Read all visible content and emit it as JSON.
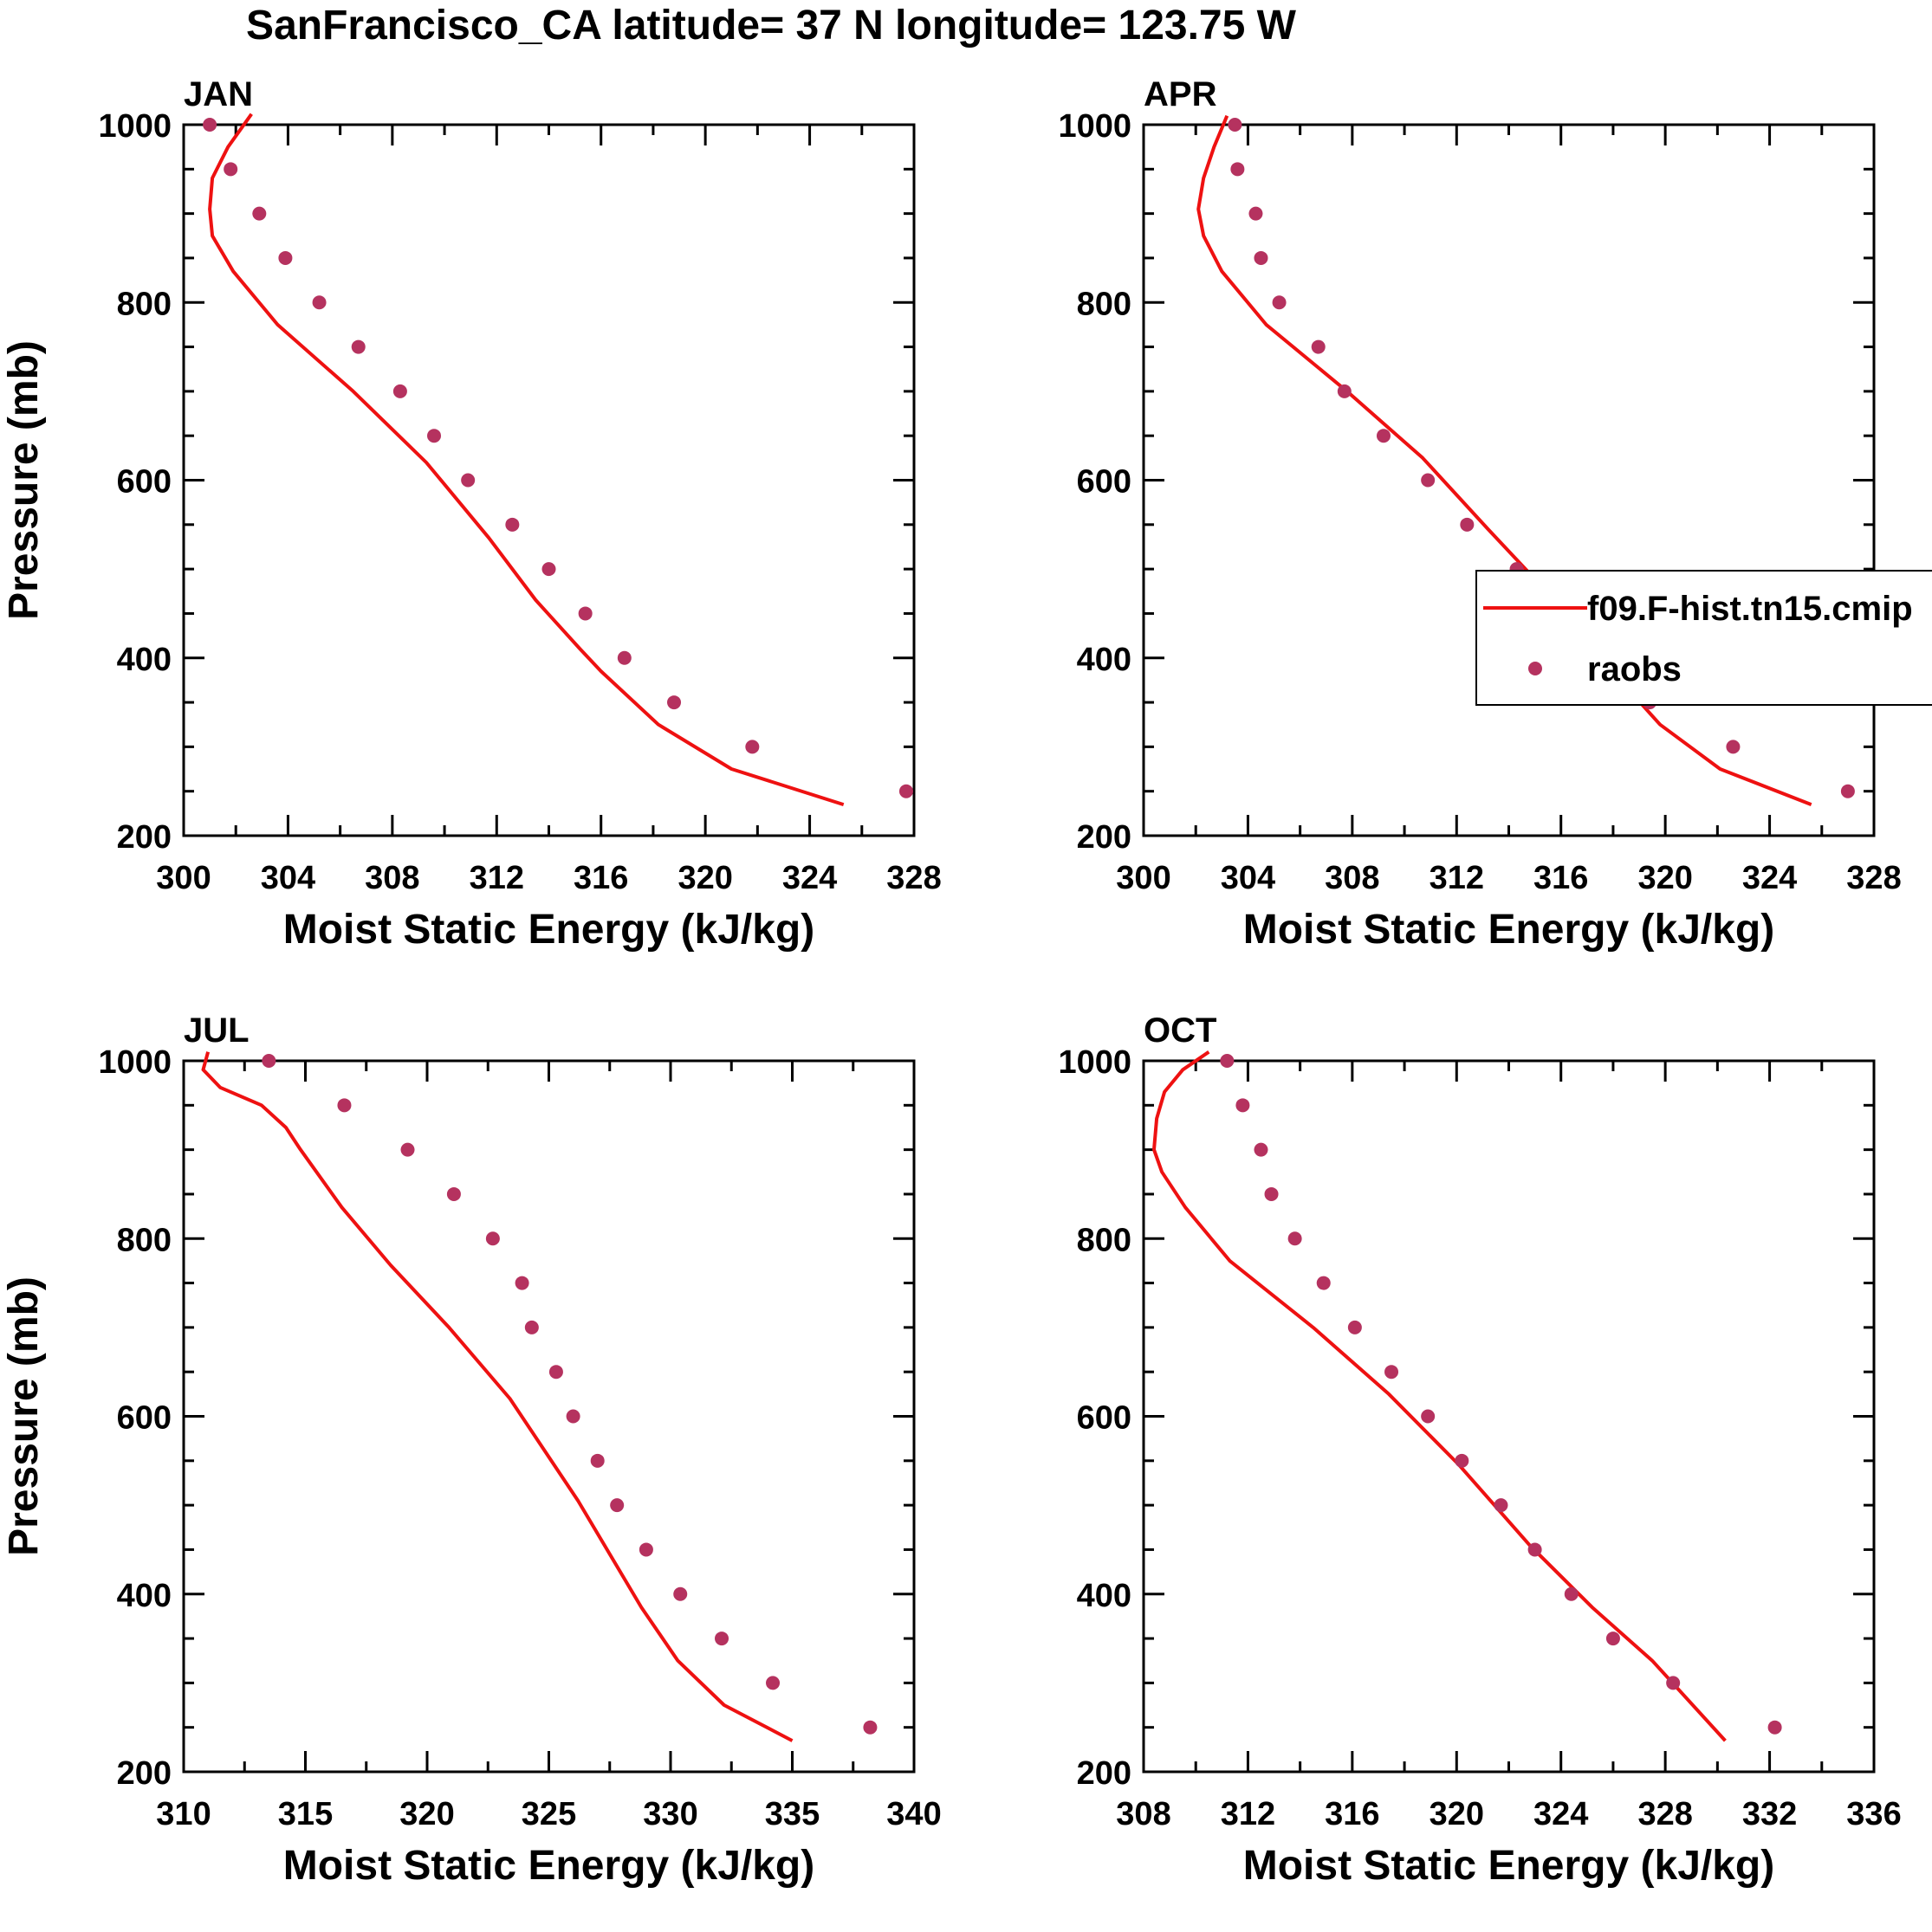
{
  "figure": {
    "title": "SanFrancisco_CA  latitude= 37 N longitude= 123.75 W"
  },
  "legend": {
    "model_label": "f09.F-hist.tn15.cmip",
    "obs_label": "raobs"
  },
  "colors": {
    "model_line": "#ee1111",
    "obs_marker": "#b5325f",
    "axis": "#000000",
    "background": "#ffffff"
  },
  "chart_data": [
    {
      "type": "line",
      "panel_title": "JAN",
      "xlabel": "Moist Static Energy (kJ/kg)",
      "ylabel": "Pressure (mb)",
      "xlim": [
        300,
        328
      ],
      "ylim": [
        1000,
        200
      ],
      "xticks": [
        "300",
        "304",
        "308",
        "312",
        "316",
        "320",
        "324",
        "328"
      ],
      "yticks": [
        "200",
        "400",
        "600",
        "800",
        "1000"
      ],
      "series": [
        {
          "name": "f09.F-hist.tn15.cmip",
          "style": "line",
          "x": [
            302.6,
            301.7,
            301.1,
            301.0,
            301.1,
            301.9,
            303.6,
            306.5,
            309.3,
            311.7,
            313.5,
            315.2,
            316.0,
            318.2,
            321.0,
            325.3
          ],
          "y": [
            1012,
            975,
            940,
            905,
            875,
            835,
            775,
            700,
            620,
            535,
            465,
            410,
            385,
            325,
            275,
            235
          ]
        },
        {
          "name": "raobs",
          "style": "markers",
          "x": [
            301.0,
            301.8,
            302.9,
            303.9,
            305.2,
            306.7,
            308.3,
            309.6,
            310.9,
            312.6,
            314.0,
            315.4,
            316.9,
            318.8,
            321.8,
            327.7
          ],
          "y": [
            1000,
            950,
            900,
            850,
            800,
            750,
            700,
            650,
            600,
            550,
            500,
            450,
            400,
            350,
            300,
            250
          ]
        }
      ]
    },
    {
      "type": "line",
      "panel_title": "APR",
      "xlabel": "Moist Static Energy (kJ/kg)",
      "ylabel": "",
      "xlim": [
        300,
        328
      ],
      "ylim": [
        1000,
        200
      ],
      "xticks": [
        "300",
        "304",
        "308",
        "312",
        "316",
        "320",
        "324",
        "328"
      ],
      "yticks": [
        "200",
        "400",
        "600",
        "800",
        "1000"
      ],
      "series": [
        {
          "name": "f09.F-hist.tn15.cmip",
          "style": "line",
          "x": [
            303.2,
            302.7,
            302.3,
            302.1,
            302.3,
            303.0,
            304.7,
            307.8,
            310.7,
            313.2,
            315.6,
            317.2,
            319.8,
            322.1,
            325.6
          ],
          "y": [
            1010,
            975,
            940,
            905,
            875,
            835,
            775,
            700,
            625,
            545,
            470,
            410,
            325,
            275,
            235
          ]
        },
        {
          "name": "raobs",
          "style": "markers",
          "x": [
            303.5,
            303.6,
            304.3,
            304.5,
            305.2,
            306.7,
            307.7,
            309.2,
            310.9,
            312.4,
            314.3,
            315.6,
            317.2,
            319.4,
            322.6,
            327.0
          ],
          "y": [
            1000,
            950,
            900,
            850,
            800,
            750,
            700,
            650,
            600,
            550,
            500,
            450,
            400,
            350,
            300,
            250
          ]
        }
      ]
    },
    {
      "type": "line",
      "panel_title": "JUL",
      "xlabel": "Moist Static Energy (kJ/kg)",
      "ylabel": "Pressure (mb)",
      "xlim": [
        310,
        340
      ],
      "ylim": [
        1000,
        200
      ],
      "xticks": [
        "310",
        "315",
        "320",
        "325",
        "330",
        "335",
        "340"
      ],
      "yticks": [
        "200",
        "400",
        "600",
        "800",
        "1000"
      ],
      "series": [
        {
          "name": "f09.F-hist.tn15.cmip",
          "style": "line",
          "x": [
            311.0,
            310.8,
            311.5,
            313.2,
            314.2,
            314.8,
            316.5,
            318.5,
            320.9,
            323.4,
            326.2,
            328.8,
            330.3,
            332.2,
            335.0
          ],
          "y": [
            1010,
            990,
            970,
            950,
            925,
            900,
            835,
            770,
            700,
            620,
            505,
            385,
            325,
            275,
            235
          ]
        },
        {
          "name": "raobs",
          "style": "markers",
          "x": [
            313.5,
            316.6,
            319.2,
            321.1,
            322.7,
            323.9,
            324.3,
            325.3,
            326.0,
            327.0,
            327.8,
            329.0,
            330.4,
            332.1,
            334.2,
            338.2
          ],
          "y": [
            1000,
            950,
            900,
            850,
            800,
            750,
            700,
            650,
            600,
            550,
            500,
            450,
            400,
            350,
            300,
            250
          ]
        }
      ]
    },
    {
      "type": "line",
      "panel_title": "OCT",
      "xlabel": "Moist Static Energy (kJ/kg)",
      "ylabel": "",
      "xlim": [
        308,
        336
      ],
      "ylim": [
        1000,
        200
      ],
      "xticks": [
        "308",
        "312",
        "316",
        "320",
        "324",
        "328",
        "332",
        "336"
      ],
      "yticks": [
        "200",
        "400",
        "600",
        "800",
        "1000"
      ],
      "series": [
        {
          "name": "f09.F-hist.tn15.cmip",
          "style": "line",
          "x": [
            310.5,
            309.5,
            308.8,
            308.5,
            308.4,
            308.7,
            309.6,
            311.3,
            314.5,
            317.4,
            320.1,
            322.8,
            325.2,
            327.5,
            330.3
          ],
          "y": [
            1010,
            990,
            965,
            935,
            900,
            875,
            835,
            775,
            700,
            625,
            545,
            455,
            385,
            325,
            235
          ]
        },
        {
          "name": "raobs",
          "style": "markers",
          "x": [
            311.2,
            311.8,
            312.5,
            312.9,
            313.8,
            314.9,
            316.1,
            317.5,
            318.9,
            320.2,
            321.7,
            323.0,
            324.4,
            326.0,
            328.3,
            332.2
          ],
          "y": [
            1000,
            950,
            900,
            850,
            800,
            750,
            700,
            650,
            600,
            550,
            500,
            450,
            400,
            350,
            300,
            250
          ]
        }
      ]
    }
  ]
}
